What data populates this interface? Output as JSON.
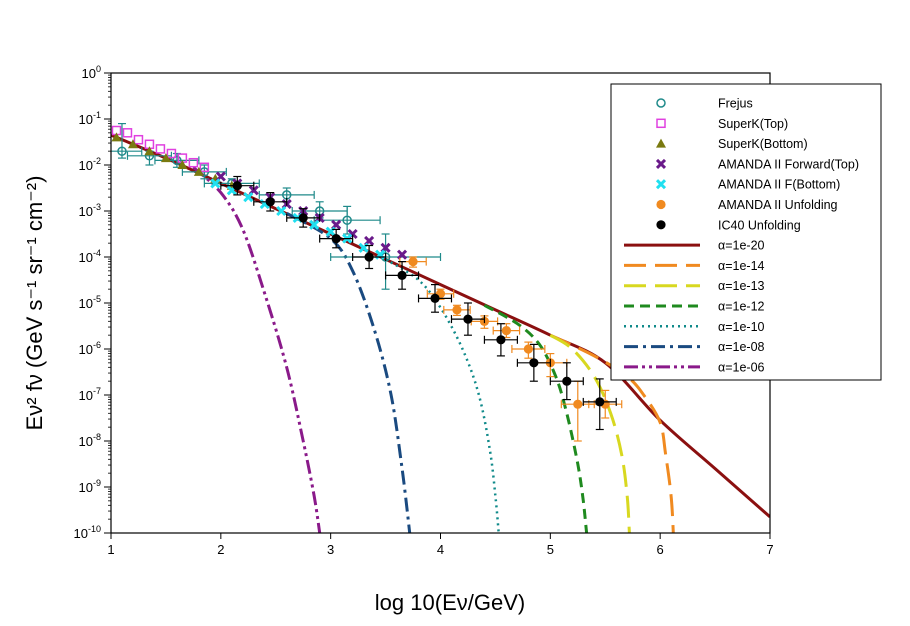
{
  "chart_data": {
    "type": "scatter",
    "title": "",
    "xlabel": "log 10(Eν/GeV)",
    "ylabel": "Eν² fν (GeV s⁻¹ sr⁻¹ cm⁻²)",
    "xlim": [
      1,
      7
    ],
    "ylim_log10": [
      -10,
      0
    ],
    "x_ticks": [
      "1",
      "2",
      "3",
      "4",
      "5",
      "6",
      "7"
    ],
    "y_ticks": [
      {
        "exp": 0,
        "base": "10",
        "sup": "0"
      },
      {
        "exp": -1,
        "base": "10",
        "sup": "-1"
      },
      {
        "exp": -2,
        "base": "10",
        "sup": "-2"
      },
      {
        "exp": -3,
        "base": "10",
        "sup": "-3"
      },
      {
        "exp": -4,
        "base": "10",
        "sup": "-4"
      },
      {
        "exp": -5,
        "base": "10",
        "sup": "-5"
      },
      {
        "exp": -6,
        "base": "10",
        "sup": "-6"
      },
      {
        "exp": -7,
        "base": "10",
        "sup": "-7"
      },
      {
        "exp": -8,
        "base": "10",
        "sup": "-8"
      },
      {
        "exp": -9,
        "base": "10",
        "sup": "-9"
      },
      {
        "exp": -10,
        "base": "10",
        "sup": "-10"
      }
    ],
    "legend_position": "top-right",
    "series": [
      {
        "name": "Frejus",
        "kind": "points",
        "marker": "circle-open",
        "color": "#1f8a8a",
        "points": [
          {
            "x": 1.1,
            "y": -1.7,
            "xerr": 0.18,
            "yl": 0.15,
            "yh": 0.6
          },
          {
            "x": 1.35,
            "y": -1.8,
            "xerr": 0.2,
            "yl": 0.2,
            "yh": 0.1
          },
          {
            "x": 1.6,
            "y": -1.9,
            "xerr": 0.2,
            "yl": 0.15,
            "yh": 0.15
          },
          {
            "x": 1.85,
            "y": -2.15,
            "xerr": 0.2,
            "yl": 0.15,
            "yh": 0.15
          },
          {
            "x": 2.1,
            "y": -2.4,
            "xerr": 0.25,
            "yl": 0.1,
            "yh": 0.1
          },
          {
            "x": 2.6,
            "y": -2.65,
            "xerr": 0.25,
            "yl": 0.15,
            "yh": 0.15
          },
          {
            "x": 2.9,
            "y": -3.0,
            "xerr": 0.25,
            "yl": 0.15,
            "yh": 0.2
          },
          {
            "x": 3.15,
            "y": -3.2,
            "xerr": 0.3,
            "yl": 0.3,
            "yh": 0.3
          },
          {
            "x": 3.5,
            "y": -4.0,
            "xerr": 0.5,
            "yl": 0.7,
            "yh": 0.5
          }
        ]
      },
      {
        "name": "SuperK(Top)",
        "kind": "points",
        "marker": "square-open",
        "color": "#e040e0",
        "points": [
          {
            "x": 1.05,
            "y": -1.25
          },
          {
            "x": 1.15,
            "y": -1.3
          },
          {
            "x": 1.25,
            "y": -1.45
          },
          {
            "x": 1.35,
            "y": -1.55
          },
          {
            "x": 1.45,
            "y": -1.65
          },
          {
            "x": 1.55,
            "y": -1.75
          },
          {
            "x": 1.65,
            "y": -1.85
          },
          {
            "x": 1.75,
            "y": -1.95
          },
          {
            "x": 1.85,
            "y": -2.05
          }
        ]
      },
      {
        "name": "SuperK(Bottom)",
        "kind": "points",
        "marker": "triangle",
        "color": "#7a7a10",
        "points": [
          {
            "x": 1.05,
            "y": -1.4
          },
          {
            "x": 1.2,
            "y": -1.55
          },
          {
            "x": 1.35,
            "y": -1.7
          },
          {
            "x": 1.5,
            "y": -1.85
          },
          {
            "x": 1.65,
            "y": -2.0
          },
          {
            "x": 1.8,
            "y": -2.15
          },
          {
            "x": 1.95,
            "y": -2.3
          },
          {
            "x": 2.1,
            "y": -2.45
          }
        ]
      },
      {
        "name": "AMANDA II Forward(Top)",
        "kind": "points",
        "marker": "x-thick",
        "color": "#6a1a8a",
        "points": [
          {
            "x": 2.0,
            "y": -2.25
          },
          {
            "x": 2.15,
            "y": -2.4
          },
          {
            "x": 2.3,
            "y": -2.55
          },
          {
            "x": 2.45,
            "y": -2.7
          },
          {
            "x": 2.6,
            "y": -2.85
          },
          {
            "x": 2.75,
            "y": -3.0
          },
          {
            "x": 2.9,
            "y": -3.15
          },
          {
            "x": 3.05,
            "y": -3.3
          },
          {
            "x": 3.2,
            "y": -3.5
          },
          {
            "x": 3.35,
            "y": -3.65
          },
          {
            "x": 3.5,
            "y": -3.8
          },
          {
            "x": 3.65,
            "y": -3.95
          }
        ]
      },
      {
        "name": "AMANDA II F(Bottom)",
        "kind": "points",
        "marker": "x-thick",
        "color": "#20e0f0",
        "points": [
          {
            "x": 1.95,
            "y": -2.4
          },
          {
            "x": 2.1,
            "y": -2.55
          },
          {
            "x": 2.25,
            "y": -2.7
          },
          {
            "x": 2.4,
            "y": -2.85
          },
          {
            "x": 2.55,
            "y": -3.0
          },
          {
            "x": 2.7,
            "y": -3.15
          },
          {
            "x": 2.85,
            "y": -3.3
          },
          {
            "x": 3.0,
            "y": -3.45
          },
          {
            "x": 3.15,
            "y": -3.6
          },
          {
            "x": 3.3,
            "y": -3.8
          },
          {
            "x": 3.45,
            "y": -3.95
          }
        ]
      },
      {
        "name": "AMANDA II Unfolding",
        "kind": "points",
        "marker": "circle-filled",
        "color": "#f08a20",
        "points": [
          {
            "x": 3.75,
            "y": -4.1,
            "xerr": 0.12,
            "yl": 0.12,
            "yh": 0.1
          },
          {
            "x": 4.0,
            "y": -4.8,
            "xerr": 0.12,
            "yl": 0.12,
            "yh": 0.1
          },
          {
            "x": 4.15,
            "y": -5.15,
            "xerr": 0.12,
            "yl": 0.12,
            "yh": 0.1
          },
          {
            "x": 4.4,
            "y": -5.4,
            "xerr": 0.12,
            "yl": 0.15,
            "yh": 0.12
          },
          {
            "x": 4.6,
            "y": -5.6,
            "xerr": 0.12,
            "yl": 0.15,
            "yh": 0.15
          },
          {
            "x": 4.8,
            "y": -6.0,
            "xerr": 0.15,
            "yl": 0.2,
            "yh": 0.15
          },
          {
            "x": 5.0,
            "y": -6.3,
            "xerr": 0.15,
            "yl": 0.3,
            "yh": 0.2
          },
          {
            "x": 5.25,
            "y": -7.2,
            "xerr": 0.15,
            "yl": 0.8,
            "yh": 0.5
          },
          {
            "x": 5.5,
            "y": -7.2,
            "xerr": 0.15,
            "yl": 0.3,
            "yh": 0.3
          }
        ]
      },
      {
        "name": "IC40 Unfolding",
        "kind": "points",
        "marker": "circle-filled",
        "color": "#000000",
        "points": [
          {
            "x": 2.15,
            "y": -2.45,
            "xerr": 0.15,
            "yl": 0.2,
            "yh": 0.2
          },
          {
            "x": 2.45,
            "y": -2.8,
            "xerr": 0.15,
            "yl": 0.2,
            "yh": 0.2
          },
          {
            "x": 2.75,
            "y": -3.15,
            "xerr": 0.15,
            "yl": 0.2,
            "yh": 0.2
          },
          {
            "x": 3.05,
            "y": -3.6,
            "xerr": 0.15,
            "yl": 0.2,
            "yh": 0.2
          },
          {
            "x": 3.35,
            "y": -4.0,
            "xerr": 0.15,
            "yl": 0.25,
            "yh": 0.25
          },
          {
            "x": 3.65,
            "y": -4.4,
            "xerr": 0.15,
            "yl": 0.3,
            "yh": 0.3
          },
          {
            "x": 3.95,
            "y": -4.9,
            "xerr": 0.15,
            "yl": 0.3,
            "yh": 0.3
          },
          {
            "x": 4.25,
            "y": -5.35,
            "xerr": 0.15,
            "yl": 0.35,
            "yh": 0.35
          },
          {
            "x": 4.55,
            "y": -5.8,
            "xerr": 0.15,
            "yl": 0.35,
            "yh": 0.35
          },
          {
            "x": 4.85,
            "y": -6.3,
            "xerr": 0.15,
            "yl": 0.4,
            "yh": 0.4
          },
          {
            "x": 5.15,
            "y": -6.7,
            "xerr": 0.15,
            "yl": 0.4,
            "yh": 0.4
          },
          {
            "x": 5.45,
            "y": -7.15,
            "xerr": 0.15,
            "yl": 0.6,
            "yh": 0.5
          }
        ]
      },
      {
        "name": "α=1e-20",
        "kind": "curve",
        "color": "#8b1010",
        "dash": "",
        "width": 3,
        "points": [
          [
            1.0,
            -1.35
          ],
          [
            1.5,
            -1.85
          ],
          [
            2.0,
            -2.4
          ],
          [
            2.5,
            -2.95
          ],
          [
            3.0,
            -3.5
          ],
          [
            3.5,
            -4.05
          ],
          [
            4.0,
            -4.6
          ],
          [
            4.5,
            -5.15
          ],
          [
            5.0,
            -5.7
          ],
          [
            5.5,
            -6.3
          ],
          [
            6.0,
            -7.55
          ],
          [
            6.5,
            -8.6
          ],
          [
            7.0,
            -9.65
          ]
        ]
      },
      {
        "name": "α=1e-14",
        "kind": "curve",
        "color": "#f08a20",
        "dash": "22 9",
        "width": 3,
        "points": [
          [
            5.0,
            -5.7
          ],
          [
            5.4,
            -6.15
          ],
          [
            5.7,
            -6.6
          ],
          [
            5.85,
            -7.0
          ],
          [
            6.0,
            -7.6
          ],
          [
            6.05,
            -8.3
          ],
          [
            6.1,
            -9.2
          ],
          [
            6.12,
            -10.0
          ]
        ]
      },
      {
        "name": "α=1e-13",
        "kind": "curve",
        "color": "#d8d820",
        "dash": "22 9",
        "width": 3,
        "points": [
          [
            5.0,
            -5.7
          ],
          [
            5.2,
            -6.0
          ],
          [
            5.4,
            -6.6
          ],
          [
            5.55,
            -7.4
          ],
          [
            5.65,
            -8.3
          ],
          [
            5.7,
            -9.2
          ],
          [
            5.72,
            -10.0
          ]
        ]
      },
      {
        "name": "α=1e-12",
        "kind": "curve",
        "color": "#1f8a1f",
        "dash": "10 6",
        "width": 3,
        "points": [
          [
            4.4,
            -5.05
          ],
          [
            4.7,
            -5.45
          ],
          [
            4.9,
            -5.9
          ],
          [
            5.05,
            -6.6
          ],
          [
            5.15,
            -7.4
          ],
          [
            5.25,
            -8.5
          ],
          [
            5.3,
            -9.3
          ],
          [
            5.33,
            -10.0
          ]
        ]
      },
      {
        "name": "α=1e-10",
        "kind": "curve",
        "color": "#108a8a",
        "dash": "2 4",
        "width": 2.5,
        "points": [
          [
            3.5,
            -4.05
          ],
          [
            3.8,
            -4.5
          ],
          [
            4.0,
            -5.1
          ],
          [
            4.2,
            -6.0
          ],
          [
            4.35,
            -7.0
          ],
          [
            4.45,
            -8.2
          ],
          [
            4.5,
            -9.2
          ],
          [
            4.53,
            -10.0
          ]
        ]
      },
      {
        "name": "α=1e-08",
        "kind": "curve",
        "color": "#1a4a80",
        "dash": "14 5 3 5",
        "width": 3,
        "points": [
          [
            2.6,
            -3.05
          ],
          [
            3.0,
            -3.6
          ],
          [
            3.2,
            -4.3
          ],
          [
            3.4,
            -5.6
          ],
          [
            3.55,
            -7.0
          ],
          [
            3.65,
            -8.6
          ],
          [
            3.72,
            -10.0
          ]
        ]
      },
      {
        "name": "α=1e-06",
        "kind": "curve",
        "color": "#8a1a8a",
        "dash": "14 4 3 4 3 4",
        "width": 3,
        "points": [
          [
            1.75,
            -2.05
          ],
          [
            2.0,
            -2.6
          ],
          [
            2.2,
            -3.4
          ],
          [
            2.4,
            -4.8
          ],
          [
            2.6,
            -6.4
          ],
          [
            2.75,
            -8.0
          ],
          [
            2.85,
            -9.2
          ],
          [
            2.9,
            -10.0
          ]
        ]
      }
    ]
  }
}
